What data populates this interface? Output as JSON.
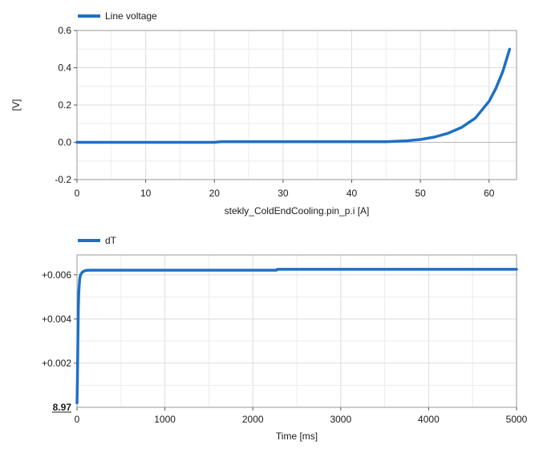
{
  "chart_data": [
    {
      "type": "line",
      "title": "",
      "xlabel": "stekly_ColdEndCooling.pin_p.i [A]",
      "ylabel": "[V]",
      "xlim": [
        0,
        64
      ],
      "ylim": [
        -0.2,
        0.6
      ],
      "x_ticks": [
        0,
        10,
        20,
        30,
        40,
        50,
        60
      ],
      "y_ticks": [
        -0.2,
        0.0,
        0.2,
        0.4,
        0.6
      ],
      "y_tick_labels": [
        "-0.2",
        "0.0",
        "0.2",
        "0.4",
        "0.6"
      ],
      "grid": true,
      "legend_position": "top-left",
      "series": [
        {
          "name": "Line voltage",
          "color": "#1f6fc5",
          "x": [
            0,
            10,
            20,
            21,
            30,
            40,
            45,
            48,
            50,
            52,
            54,
            56,
            58,
            60,
            61,
            62,
            63
          ],
          "y": [
            0.0,
            0.0,
            0.0,
            0.003,
            0.003,
            0.003,
            0.003,
            0.008,
            0.015,
            0.028,
            0.048,
            0.08,
            0.13,
            0.22,
            0.29,
            0.38,
            0.5
          ]
        }
      ]
    },
    {
      "type": "line",
      "title": "",
      "xlabel": "Time [ms]",
      "ylabel": "",
      "xlim": [
        0,
        5000
      ],
      "ylim": [
        0,
        0.0069
      ],
      "y_offset_label": "8.97",
      "x_ticks": [
        0,
        1000,
        2000,
        3000,
        4000,
        5000
      ],
      "y_ticks": [
        0.002,
        0.004,
        0.006
      ],
      "y_tick_labels": [
        "+0.002",
        "+0.004",
        "+0.006"
      ],
      "grid": true,
      "legend_position": "top-left",
      "series": [
        {
          "name": "dT",
          "color": "#1f6fc5",
          "x": [
            0,
            5,
            10,
            15,
            20,
            30,
            40,
            60,
            80,
            100,
            150,
            200,
            500,
            1000,
            2000,
            2270,
            2280,
            3000,
            4000,
            5000
          ],
          "y": [
            0.0002,
            0.0012,
            0.003,
            0.0044,
            0.0052,
            0.0058,
            0.006,
            0.00612,
            0.00617,
            0.0062,
            0.00621,
            0.00621,
            0.00621,
            0.00621,
            0.00621,
            0.00621,
            0.00625,
            0.00625,
            0.00625,
            0.00625
          ]
        }
      ]
    }
  ]
}
